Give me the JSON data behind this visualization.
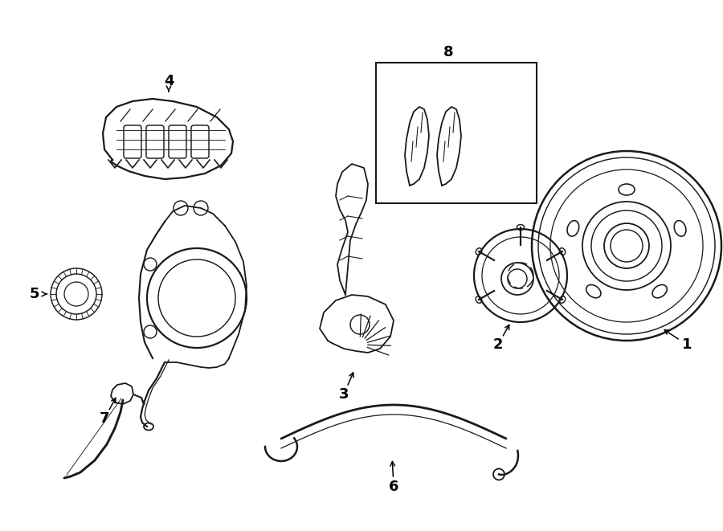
{
  "background_color": "#ffffff",
  "line_color": "#1a1a1a",
  "lw": 1.3,
  "fig_width": 9.0,
  "fig_height": 6.61,
  "dpi": 100
}
